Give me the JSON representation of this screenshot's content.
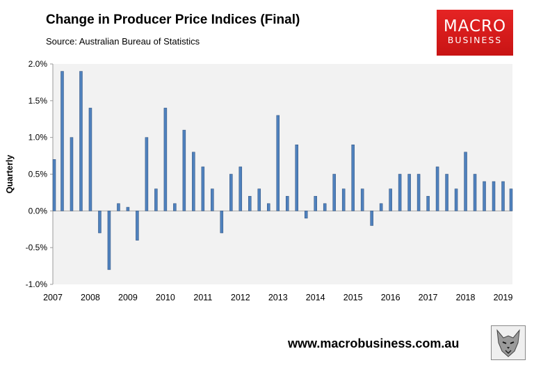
{
  "title": "Change in Producer Price Indices (Final)",
  "source": "Source:  Australian Bureau of Statistics",
  "logo": {
    "line1": "MACRO",
    "line2": "BUSINESS"
  },
  "url": "www.macrobusiness.com.au",
  "colors": {
    "bar": "#4f81bd",
    "plot_bg": "#f2f2f2",
    "logo_bg": "#d81e1e"
  },
  "chart_data": {
    "type": "bar",
    "title": "Change in Producer Price Indices (Final)",
    "ylabel": "Quarterly",
    "xlabel": "",
    "ylim": [
      -1.0,
      2.0
    ],
    "yticks": [
      "2.0%",
      "1.5%",
      "1.0%",
      "0.5%",
      "0.0%",
      "-0.5%",
      "-1.0%"
    ],
    "ytick_values": [
      2.0,
      1.5,
      1.0,
      0.5,
      0.0,
      -0.5,
      -1.0
    ],
    "xtick_labels": [
      "2007",
      "2008",
      "2009",
      "2010",
      "2011",
      "2012",
      "2013",
      "2014",
      "2015",
      "2016",
      "2017",
      "2018",
      "2019"
    ],
    "quarters_per_year": 4,
    "values": [
      0.7,
      1.9,
      1.0,
      1.9,
      1.4,
      -0.3,
      -0.8,
      0.1,
      0.05,
      -0.4,
      1.0,
      0.3,
      1.4,
      0.1,
      1.1,
      0.8,
      0.6,
      0.3,
      -0.3,
      0.5,
      0.6,
      0.2,
      0.3,
      0.1,
      1.3,
      0.2,
      0.9,
      -0.1,
      0.2,
      0.1,
      0.5,
      0.3,
      0.9,
      0.3,
      -0.2,
      0.1,
      0.3,
      0.5,
      0.5,
      0.5,
      0.2,
      0.6,
      0.5,
      0.3,
      0.8,
      0.5,
      0.4,
      0.4,
      0.4,
      0.3
    ],
    "unit": "%"
  }
}
